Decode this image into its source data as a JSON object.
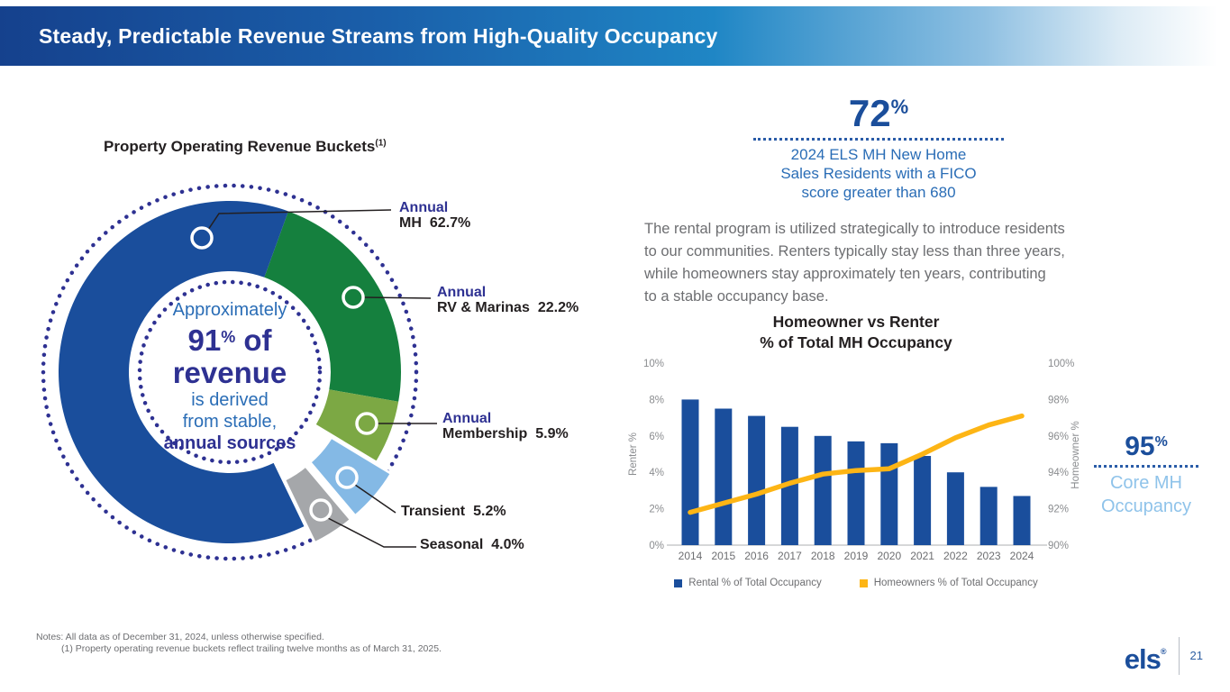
{
  "slide": {
    "title": "Steady, Predictable Revenue Streams from High-Quality Occupancy",
    "page_number": "21",
    "logo_text": "els",
    "logo_reg": "®",
    "notes": {
      "line1": "Notes: All data as of December 31, 2024, unless otherwise specified.",
      "line2": "(1) Property operating revenue buckets reflect trailing twelve months as of March 31, 2025."
    }
  },
  "donut": {
    "title": "Property Operating Revenue Buckets",
    "title_superscript": "(1)",
    "center": {
      "line1": "Approximately",
      "big_number": "91",
      "percent_sign": "%",
      "big_suffix": " of",
      "line2": "revenue",
      "line3": "is derived",
      "line4": "from stable,",
      "line5": "annual sources"
    }
  },
  "stats": {
    "fico": {
      "value": "72",
      "unit": "%",
      "caption_lines": [
        "2024 ELS MH New Home",
        "Sales Residents with a FICO",
        "score greater than 680"
      ]
    },
    "core": {
      "value": "95",
      "unit": "%",
      "caption_lines": [
        "Core MH",
        "Occupancy"
      ]
    }
  },
  "paragraph": {
    "lines": [
      "The rental program is utilized strategically to introduce residents",
      "to our communities. Renters typically stay less than three years,",
      "while homeowners stay approximately ten years, contributing",
      "to a stable occupancy base."
    ]
  },
  "chart_data": [
    {
      "type": "pie",
      "title": "Property Operating Revenue Buckets (1)",
      "center_text": "Approximately 91% of revenue is derived from stable, annual sources",
      "dot_ring_color": "#2e3192",
      "slices": [
        {
          "category": "Annual",
          "label": "MH",
          "value": 62.7,
          "value_label": "62.7%",
          "color": "#1a4e9c",
          "exploded": false
        },
        {
          "category": "Annual",
          "label": "RV & Marinas",
          "value": 22.2,
          "value_label": "22.2%",
          "color": "#15803e",
          "exploded": false
        },
        {
          "category": "Annual",
          "label": "Membership",
          "value": 5.9,
          "value_label": "5.9%",
          "color": "#7ca844",
          "exploded": false
        },
        {
          "category": "",
          "label": "Transient",
          "value": 5.2,
          "value_label": "5.2%",
          "color": "#84b9e5",
          "exploded": true
        },
        {
          "category": "",
          "label": "Seasonal",
          "value": 4.0,
          "value_label": "4.0%",
          "color": "#a5a7aa",
          "exploded": true
        }
      ]
    },
    {
      "type": "bar+line",
      "title": "Homeowner vs Renter % of Total MH Occupancy",
      "title_lines": [
        "Homeowner vs Renter",
        "% of Total MH Occupancy"
      ],
      "categories": [
        "2014",
        "2015",
        "2016",
        "2017",
        "2018",
        "2019",
        "2020",
        "2021",
        "2022",
        "2023",
        "2024"
      ],
      "series": [
        {
          "name": "Rental % of Total Occupancy",
          "type": "bar",
          "axis": "left",
          "color": "#1a4e9c",
          "values": [
            8.0,
            7.5,
            7.1,
            6.5,
            6.0,
            5.7,
            5.6,
            4.9,
            4.0,
            3.2,
            2.7
          ]
        },
        {
          "name": "Homeowners % of Total Occupancy",
          "type": "line",
          "axis": "right",
          "color": "#fdb515",
          "values": [
            91.8,
            92.3,
            92.8,
            93.4,
            93.9,
            94.1,
            94.2,
            95.0,
            95.9,
            96.6,
            97.1
          ]
        }
      ],
      "left_axis": {
        "label": "Renter %",
        "min": 0,
        "max": 10,
        "ticks": [
          "0%",
          "2%",
          "4%",
          "6%",
          "8%",
          "10%"
        ],
        "tick_values": [
          0,
          2,
          4,
          6,
          8,
          10
        ]
      },
      "right_axis": {
        "label": "Homeowner %",
        "min": 90,
        "max": 100,
        "ticks": [
          "90%",
          "92%",
          "94%",
          "96%",
          "98%",
          "100%"
        ],
        "tick_values": [
          90,
          92,
          94,
          96,
          98,
          100
        ]
      },
      "grid": false,
      "legend_position": "bottom"
    }
  ]
}
